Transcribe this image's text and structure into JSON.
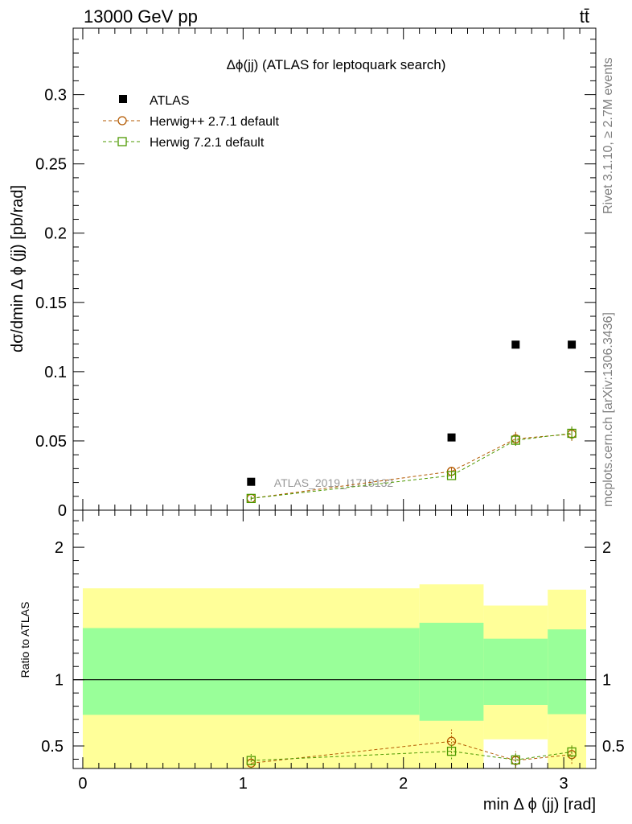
{
  "header": {
    "energy_label": "13000 GeV pp",
    "process_label": "tt̄"
  },
  "side": {
    "rivet_label": "Rivet 3.1.10, ≥ 2.7M events",
    "mcplots_label": "mcplots.cern.ch [arXiv:1306.3436]"
  },
  "chart_data": [
    {
      "type": "scatter",
      "panel": "main",
      "title": "Δϕ(jj) (ATLAS for leptoquark search)",
      "watermark": "ATLAS_2019_I1718132",
      "xlabel": "min Δ ϕ (jj) [rad]",
      "ylabel": "dσ/dmin Δ ϕ (jj) [pb/rad]",
      "xlim": [
        -0.06,
        3.2
      ],
      "ylim": [
        0,
        0.348
      ],
      "yticks": [
        0,
        0.05,
        0.1,
        0.15,
        0.2,
        0.25,
        0.3
      ],
      "ytick_labels": [
        "0",
        "0.05",
        "0.1",
        "0.15",
        "0.2",
        "0.25",
        "0.3"
      ],
      "legend_position": "top-left",
      "series": [
        {
          "name": "ATLAS",
          "marker": "filled-square",
          "color": "#000000",
          "x": [
            1.05,
            2.3,
            2.7,
            3.05
          ],
          "y": [
            0.0205,
            0.0525,
            0.1195,
            0.1195
          ]
        },
        {
          "name": "Herwig++ 2.7.1 default",
          "marker": "open-circle",
          "color": "#b35900",
          "line": "dashed",
          "x": [
            1.05,
            2.3,
            2.7,
            3.05
          ],
          "y": [
            0.0085,
            0.028,
            0.0515,
            0.055
          ],
          "yerr": [
            0.0015,
            0.0025,
            0.005,
            0.005
          ]
        },
        {
          "name": "Herwig 7.2.1 default",
          "marker": "open-square",
          "color": "#4d9900",
          "line": "dashed",
          "x": [
            1.05,
            2.3,
            2.7,
            3.05
          ],
          "y": [
            0.0085,
            0.025,
            0.0505,
            0.0555
          ],
          "yerr": [
            0.0015,
            0.002,
            0.004,
            0.005
          ]
        }
      ]
    },
    {
      "type": "scatter",
      "panel": "ratio",
      "ylabel": "Ratio to ATLAS",
      "xlabel": "min Δ ϕ (jj) [rad]",
      "xlim": [
        -0.06,
        3.2
      ],
      "ylim": [
        0.33,
        2.28
      ],
      "xticks": [
        0,
        1,
        2,
        3
      ],
      "xtick_labels": [
        "0",
        "1",
        "2",
        "3"
      ],
      "yticks": [
        0.5,
        1,
        2
      ],
      "ytick_labels": [
        "0.5",
        "1",
        "2"
      ],
      "reference_line": 1,
      "bins": [
        {
          "x0": 0.0,
          "x1": 2.1,
          "outer": [
            0.33,
            1.69
          ],
          "inner": [
            0.735,
            1.39
          ]
        },
        {
          "x0": 2.1,
          "x1": 2.5,
          "outer": [
            0.33,
            1.72
          ],
          "inner": [
            0.69,
            1.43
          ]
        },
        {
          "x0": 2.5,
          "x1": 2.9,
          "outer": [
            0.55,
            1.56
          ],
          "inner": [
            0.81,
            1.31
          ]
        },
        {
          "x0": 2.9,
          "x1": 3.2,
          "outer": [
            0.33,
            1.68
          ],
          "inner": [
            0.74,
            1.38
          ]
        }
      ],
      "series": [
        {
          "name": "Herwig++ 2.7.1 default",
          "color": "#b35900",
          "x": [
            1.05,
            2.3,
            2.7,
            3.05
          ],
          "y": [
            0.37,
            0.535,
            0.39,
            0.435
          ],
          "yerr": [
            0.06,
            0.09,
            0.07,
            0.07
          ]
        },
        {
          "name": "Herwig 7.2.1 default",
          "color": "#4d9900",
          "x": [
            1.05,
            2.3,
            2.7,
            3.05
          ],
          "y": [
            0.39,
            0.46,
            0.395,
            0.455
          ],
          "yerr": [
            0.06,
            0.06,
            0.06,
            0.06
          ]
        }
      ]
    }
  ]
}
